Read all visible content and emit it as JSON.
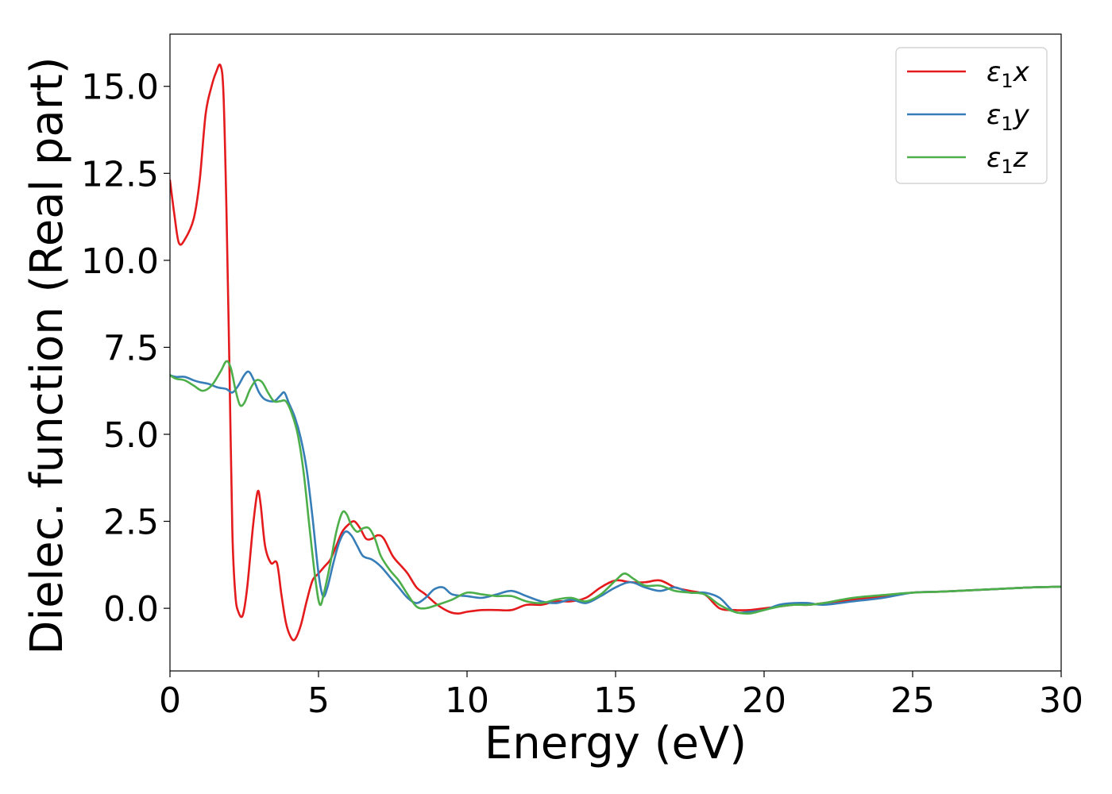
{
  "chart_data": {
    "type": "line",
    "xlabel": "Energy (eV)",
    "ylabel": "Dielec. function (Real part)",
    "xlim": [
      0,
      30
    ],
    "ylim": [
      -1.8,
      16.5
    ],
    "xticks": [
      0,
      5,
      10,
      15,
      20,
      25,
      30
    ],
    "xtick_labels": [
      "0",
      "5",
      "10",
      "15",
      "20",
      "25",
      "30"
    ],
    "yticks": [
      0.0,
      2.5,
      5.0,
      7.5,
      10.0,
      12.5,
      15.0
    ],
    "ytick_labels": [
      "0.0",
      "2.5",
      "5.0",
      "7.5",
      "10.0",
      "12.5",
      "15.0"
    ],
    "grid": false,
    "legend_position": "top-right",
    "series": [
      {
        "name": "ε1x",
        "legend": {
          "main": "ε",
          "sub": "1",
          "suffix": "x"
        },
        "color": "#e41a1c",
        "x": [
          0,
          0.15,
          0.3,
          0.5,
          0.8,
          1.0,
          1.2,
          1.4,
          1.55,
          1.7,
          1.8,
          1.9,
          2.0,
          2.1,
          2.2,
          2.3,
          2.45,
          2.6,
          2.8,
          2.95,
          3.05,
          3.2,
          3.4,
          3.6,
          3.75,
          3.9,
          4.05,
          4.2,
          4.4,
          4.6,
          4.8,
          5.0,
          5.2,
          5.4,
          5.6,
          5.8,
          6.0,
          6.2,
          6.4,
          6.6,
          6.8,
          7.0,
          7.2,
          7.5,
          7.8,
          8.0,
          8.3,
          8.6,
          9.0,
          9.4,
          9.7,
          10.0,
          10.5,
          11.0,
          11.5,
          12.0,
          12.5,
          13.0,
          13.5,
          14.0,
          14.5,
          15.0,
          15.5,
          16.0,
          16.5,
          17.0,
          17.5,
          18.0,
          18.5,
          19.0,
          19.5,
          20.0,
          20.5,
          21.0,
          21.5,
          22.0,
          23.0,
          24.0,
          25.0,
          26.0,
          27.0,
          28.0,
          29.0,
          30.0
        ],
        "y": [
          12.3,
          11.3,
          10.5,
          10.6,
          11.2,
          12.3,
          14.2,
          15.0,
          15.4,
          15.6,
          14.8,
          11.5,
          7.0,
          2.2,
          0.4,
          -0.1,
          -0.2,
          0.6,
          2.4,
          3.35,
          3.0,
          1.8,
          1.3,
          1.3,
          0.4,
          -0.4,
          -0.8,
          -0.9,
          -0.5,
          0.2,
          0.8,
          1.0,
          1.2,
          1.4,
          1.8,
          2.2,
          2.4,
          2.5,
          2.3,
          2.0,
          2.0,
          2.1,
          2.0,
          1.5,
          1.2,
          1.0,
          0.6,
          0.4,
          0.1,
          -0.1,
          -0.15,
          -0.1,
          -0.05,
          -0.05,
          -0.05,
          0.1,
          0.1,
          0.2,
          0.2,
          0.3,
          0.6,
          0.8,
          0.75,
          0.75,
          0.8,
          0.6,
          0.5,
          0.4,
          0.0,
          -0.05,
          -0.05,
          0.0,
          0.05,
          0.1,
          0.1,
          0.15,
          0.25,
          0.35,
          0.45,
          0.48,
          0.52,
          0.56,
          0.6,
          0.62
        ]
      },
      {
        "name": "ε1y",
        "legend": {
          "main": "ε",
          "sub": "1",
          "suffix": "y"
        },
        "color": "#377eb8",
        "x": [
          0,
          0.2,
          0.5,
          0.8,
          1.0,
          1.3,
          1.6,
          1.9,
          2.1,
          2.3,
          2.5,
          2.65,
          2.8,
          3.0,
          3.2,
          3.5,
          3.7,
          3.85,
          4.0,
          4.2,
          4.4,
          4.6,
          4.8,
          5.0,
          5.15,
          5.3,
          5.5,
          5.7,
          5.9,
          6.1,
          6.3,
          6.5,
          6.8,
          7.1,
          7.4,
          7.7,
          8.0,
          8.3,
          8.6,
          8.9,
          9.2,
          9.5,
          10.0,
          10.5,
          11.0,
          11.5,
          12.0,
          12.5,
          13.0,
          13.5,
          14.0,
          14.5,
          15.0,
          15.5,
          16.0,
          16.5,
          17.0,
          17.5,
          18.0,
          18.5,
          19.0,
          19.5,
          20.0,
          20.5,
          21.0,
          21.5,
          22.0,
          23.0,
          24.0,
          25.0,
          26.0,
          27.0,
          28.0,
          29.0,
          30.0
        ],
        "y": [
          6.7,
          6.65,
          6.65,
          6.55,
          6.5,
          6.45,
          6.35,
          6.3,
          6.2,
          6.4,
          6.7,
          6.8,
          6.6,
          6.2,
          6.0,
          5.95,
          6.1,
          6.2,
          5.9,
          5.5,
          4.9,
          4.0,
          2.6,
          1.0,
          0.35,
          0.6,
          1.3,
          1.9,
          2.2,
          2.1,
          1.8,
          1.5,
          1.4,
          1.2,
          0.9,
          0.6,
          0.3,
          0.15,
          0.3,
          0.55,
          0.6,
          0.4,
          0.35,
          0.3,
          0.4,
          0.5,
          0.35,
          0.2,
          0.15,
          0.25,
          0.15,
          0.35,
          0.6,
          0.75,
          0.6,
          0.5,
          0.6,
          0.45,
          0.45,
          0.3,
          -0.1,
          -0.1,
          -0.05,
          0.1,
          0.15,
          0.15,
          0.1,
          0.2,
          0.3,
          0.45,
          0.48,
          0.52,
          0.56,
          0.6,
          0.62
        ]
      },
      {
        "name": "ε1z",
        "legend": {
          "main": "ε",
          "sub": "1",
          "suffix": "z"
        },
        "color": "#4daf4a",
        "x": [
          0,
          0.2,
          0.5,
          0.8,
          1.1,
          1.4,
          1.7,
          1.9,
          2.05,
          2.2,
          2.35,
          2.5,
          2.7,
          2.9,
          3.1,
          3.3,
          3.5,
          3.7,
          3.9,
          4.1,
          4.3,
          4.5,
          4.7,
          4.9,
          5.05,
          5.2,
          5.4,
          5.6,
          5.8,
          5.95,
          6.1,
          6.3,
          6.5,
          6.7,
          6.9,
          7.1,
          7.4,
          7.7,
          8.0,
          8.3,
          8.6,
          9.0,
          9.5,
          10.0,
          10.5,
          11.0,
          11.5,
          12.0,
          12.5,
          13.0,
          13.5,
          14.0,
          14.5,
          15.0,
          15.3,
          15.6,
          16.0,
          16.5,
          17.0,
          17.5,
          18.0,
          18.5,
          19.0,
          19.5,
          20.0,
          20.5,
          21.0,
          21.5,
          22.0,
          23.0,
          24.0,
          25.0,
          26.0,
          27.0,
          28.0,
          29.0,
          30.0
        ],
        "y": [
          6.7,
          6.6,
          6.55,
          6.4,
          6.25,
          6.4,
          6.8,
          7.1,
          6.9,
          6.3,
          5.85,
          5.9,
          6.3,
          6.55,
          6.5,
          6.2,
          5.95,
          5.95,
          5.95,
          5.6,
          5.0,
          3.9,
          2.3,
          0.8,
          0.1,
          0.5,
          1.3,
          2.2,
          2.75,
          2.7,
          2.4,
          2.2,
          2.3,
          2.3,
          2.0,
          1.5,
          1.1,
          0.8,
          0.4,
          0.05,
          0.0,
          0.1,
          0.25,
          0.45,
          0.4,
          0.35,
          0.35,
          0.2,
          0.15,
          0.25,
          0.3,
          0.2,
          0.4,
          0.8,
          1.0,
          0.85,
          0.65,
          0.65,
          0.5,
          0.45,
          0.4,
          0.1,
          -0.1,
          -0.15,
          -0.05,
          0.05,
          0.1,
          0.1,
          0.15,
          0.3,
          0.38,
          0.45,
          0.48,
          0.52,
          0.56,
          0.6,
          0.62
        ]
      }
    ]
  }
}
